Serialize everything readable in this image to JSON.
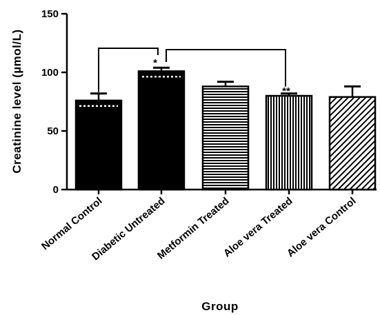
{
  "chart_data": {
    "type": "bar",
    "title": "",
    "xlabel": "Group",
    "ylabel": "Creatinine level (µmol/L)",
    "ylim": [
      0,
      150
    ],
    "yticks": [
      0,
      50,
      100,
      150
    ],
    "categories": [
      "Normal Control",
      "Diabetic Untreated",
      "Metformin Treated",
      "Aloe vera Treated",
      "Aloe vera Control"
    ],
    "values": [
      76,
      101,
      88,
      80,
      79
    ],
    "errors": [
      6,
      3,
      4,
      2,
      9
    ],
    "patterns": [
      "solid-dotted",
      "solid-dotted",
      "horizontal-lines",
      "vertical-lines",
      "diagonal-lines"
    ],
    "significance": [
      {
        "from": 0,
        "to": 1,
        "label": "*"
      },
      {
        "from": 1,
        "to": 3,
        "label": "**"
      }
    ],
    "grid": false,
    "legend": "none"
  }
}
